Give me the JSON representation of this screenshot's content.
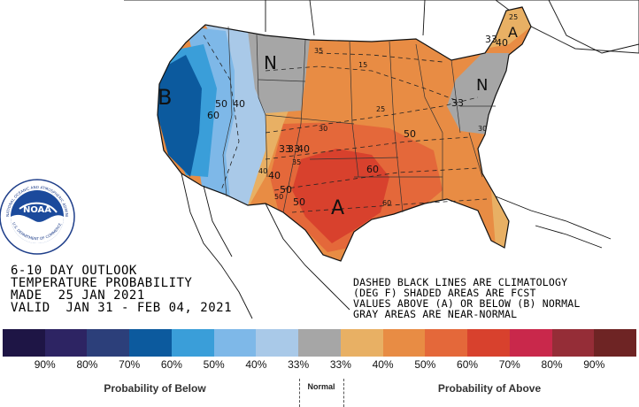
{
  "map_labels": {
    "below_letter": "B",
    "normal_letter": "N",
    "normal_letter_east": "N",
    "above_letter": "A",
    "above_letter_ne": "A",
    "contours": [
      "50",
      "40",
      "60",
      "50",
      "40",
      "33",
      "33",
      "33",
      "40",
      "50",
      "40",
      "60",
      "50",
      "15",
      "25",
      "30",
      "35",
      "50",
      "60",
      "25",
      "30",
      "35",
      "40",
      "33"
    ]
  },
  "title": {
    "line1": "6-10 DAY OUTLOOK",
    "line2": "TEMPERATURE PROBABILITY",
    "line3": "MADE  25 JAN 2021",
    "line4": "VALID  JAN 31 - FEB 04, 2021"
  },
  "notes": {
    "line1": "DASHED BLACK LINES ARE CLIMATOLOGY",
    "line2": "(DEG F) SHADED AREAS ARE FCST",
    "line3": "VALUES ABOVE (A) OR BELOW (B) NORMAL",
    "line4": "GRAY AREAS ARE NEAR-NORMAL"
  },
  "logo": {
    "center_text": "NOAA",
    "ring_text": "NATIONAL OCEANIC AND ATMOSPHERIC ADMINISTRATION",
    "ring_bottom": "U.S. DEPARTMENT OF COMMERCE"
  },
  "legend": {
    "colors": [
      "#1e1545",
      "#2d2463",
      "#2c3f7a",
      "#0c5a9e",
      "#3a9ed9",
      "#7eb8e8",
      "#a9c9e8",
      "#a6a6a6",
      "#e8b064",
      "#e88c44",
      "#e4683a",
      "#d8412d",
      "#c9284b",
      "#952d37",
      "#6e2424"
    ],
    "percents": [
      "90%",
      "80%",
      "70%",
      "60%",
      "50%",
      "40%",
      "33%",
      "33%",
      "40%",
      "50%",
      "60%",
      "70%",
      "80%",
      "90%"
    ],
    "below_caption": "Probability of Below",
    "normal_caption": "Normal",
    "above_caption": "Probability of Above"
  }
}
